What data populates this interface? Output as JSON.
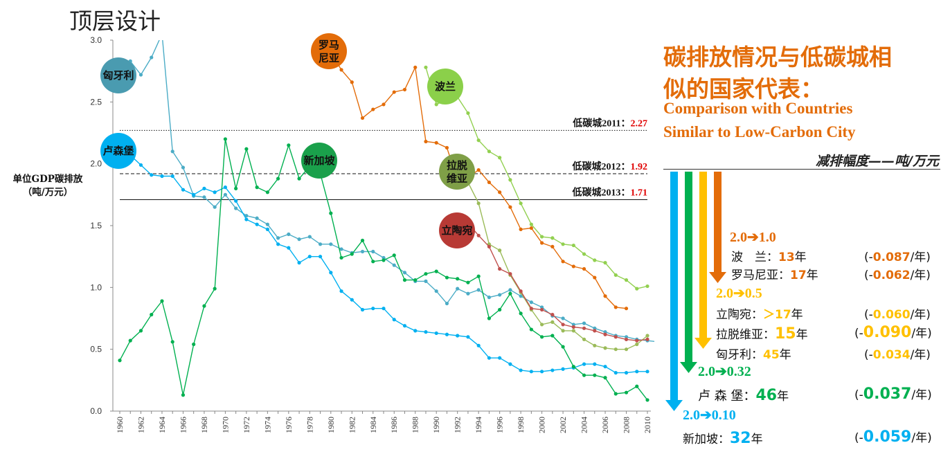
{
  "page_title": "顶层设计",
  "right_panel": {
    "title_line1": "碳排放情况与低碳城相",
    "title_line2": "似的国家代表：",
    "english_line1": "Comparison with Countries",
    "english_line2": "Similar to Low-Carbon City",
    "subtitle": "减排幅度——吨/万元",
    "arrow_colors": [
      "#00b0f0",
      "#00b050",
      "#ffc000",
      "#e36c09"
    ],
    "groups": [
      {
        "range": "2.0➔1.0",
        "color": "#e36c09",
        "rows": [
          {
            "label": "波　兰：",
            "years": "13",
            "unit": "年",
            "rate": "0.087"
          },
          {
            "label": "罗马尼亚：",
            "years": "17",
            "unit": "年",
            "rate": "0.062"
          }
        ]
      },
      {
        "range": "2.0➔0.5",
        "color": "#ffc000",
        "rows": [
          {
            "label": "立陶宛：",
            "years": "＞17",
            "unit": "年",
            "rate": "0.060"
          },
          {
            "label": "拉脱维亚：",
            "years": "15",
            "unit": "年",
            "rate": "0.090"
          },
          {
            "label": "匈牙利：",
            "years": "45",
            "unit": "年",
            "rate": "0.034"
          }
        ]
      },
      {
        "range": "2.0➔0.32",
        "color": "#00b050",
        "rows": [
          {
            "label": "卢 森 堡：",
            "years": "46",
            "unit": "年",
            "rate": "0.037"
          }
        ]
      },
      {
        "range": "2.0➔0.10",
        "color": "#00b0f0",
        "rows": [
          {
            "label": "新加坡：",
            "years": "32",
            "unit": "年",
            "rate": "0.059"
          }
        ]
      }
    ],
    "rate_prefix": "(-",
    "rate_suffix": "/年)"
  },
  "chart_data": {
    "type": "line",
    "ylabel_line1": "单位GDP碳排放",
    "ylabel_line2": "（吨/万元）",
    "ylim": [
      0,
      3.0
    ],
    "yticks": [
      "0.0",
      "0.5",
      "1.0",
      "1.5",
      "2.0",
      "2.5",
      "3.0"
    ],
    "xlim": [
      1960,
      2010
    ],
    "xticks": [
      "1960",
      "1962",
      "1964",
      "1966",
      "1968",
      "1970",
      "1972",
      "1974",
      "1976",
      "1978",
      "1980",
      "1982",
      "1984",
      "1986",
      "1988",
      "1990",
      "1992",
      "1994",
      "1996",
      "1998",
      "2000",
      "2002",
      "2004",
      "2006",
      "2008",
      "2010"
    ],
    "reference_lines": [
      {
        "label": "低碳城2011：",
        "value_label": "2.27",
        "value": 2.27,
        "style": "dotted"
      },
      {
        "label": "低碳城2012：",
        "value_label": "1.92",
        "value": 1.92,
        "style": "dashed"
      },
      {
        "label": "低碳城2013：",
        "value_label": "1.71",
        "value": 1.71,
        "style": "solid"
      }
    ],
    "series": [
      {
        "name": "匈牙利",
        "color": "#4bacc6",
        "bubble": "#4a9bb0",
        "start": 1961,
        "values": [
          2.83,
          2.72,
          2.86,
          3.05,
          2.1,
          1.97,
          1.74,
          1.73,
          1.65,
          1.75,
          1.64,
          1.58,
          1.56,
          1.51,
          1.4,
          1.43,
          1.39,
          1.41,
          1.35,
          1.35,
          1.31,
          1.28,
          1.29,
          1.29,
          1.24,
          1.18,
          1.12,
          1.05,
          1.05,
          0.97,
          0.87,
          0.99,
          0.95,
          0.98,
          0.92,
          0.94,
          0.98,
          0.93,
          0.88,
          0.84,
          0.77,
          0.75,
          0.7,
          0.71,
          0.67,
          0.64,
          0.61,
          0.6,
          0.58,
          0.57,
          0.56
        ]
      },
      {
        "name": "卢森堡",
        "color": "#00b0f0",
        "bubble": "#00b0f0",
        "start": 1960,
        "values": [
          2.12,
          2.07,
          1.99,
          1.91,
          1.9,
          1.9,
          1.79,
          1.75,
          1.8,
          1.77,
          1.81,
          1.7,
          1.55,
          1.51,
          1.47,
          1.35,
          1.32,
          1.2,
          1.25,
          1.25,
          1.12,
          0.97,
          0.9,
          0.82,
          0.83,
          0.83,
          0.74,
          0.69,
          0.65,
          0.64,
          0.63,
          0.62,
          0.61,
          0.6,
          0.53,
          0.43,
          0.43,
          0.38,
          0.33,
          0.32,
          0.32,
          0.33,
          0.34,
          0.35,
          0.38,
          0.38,
          0.36,
          0.31,
          0.31,
          0.32,
          0.32
        ]
      },
      {
        "name": "新加坡",
        "color": "#00b050",
        "bubble": "#1aa04b",
        "start": 1960,
        "values": [
          0.41,
          0.57,
          0.65,
          0.78,
          0.89,
          0.56,
          0.13,
          0.54,
          0.85,
          0.99,
          2.2,
          1.8,
          2.12,
          1.81,
          1.77,
          1.88,
          2.15,
          1.88,
          1.98,
          1.92,
          1.6,
          1.24,
          1.27,
          1.38,
          1.21,
          1.22,
          1.26,
          1.06,
          1.06,
          1.11,
          1.13,
          1.08,
          1.07,
          1.04,
          1.09,
          0.75,
          0.82,
          0.95,
          0.79,
          0.66,
          0.6,
          0.61,
          0.52,
          0.36,
          0.29,
          0.29,
          0.27,
          0.14,
          0.15,
          0.2,
          0.09
        ]
      },
      {
        "name": "罗马尼亚",
        "color": "#e36c09",
        "bubble": "#e36c09",
        "start": 1980,
        "values": [
          2.9,
          2.76,
          2.66,
          2.37,
          2.44,
          2.48,
          2.58,
          2.6,
          2.78,
          2.18,
          2.17,
          2.13,
          1.87,
          1.89,
          1.95,
          1.85,
          1.77,
          1.65,
          1.47,
          1.48,
          1.36,
          1.33,
          1.21,
          1.17,
          1.15,
          1.08,
          0.93,
          0.84,
          0.83
        ]
      },
      {
        "name": "波兰",
        "color": "#92d050",
        "bubble": "#8bd04a",
        "start": 1989,
        "values": [
          2.78,
          2.48,
          2.52,
          2.54,
          2.41,
          2.19,
          2.1,
          2.05,
          1.87,
          1.68,
          1.51,
          1.41,
          1.4,
          1.35,
          1.34,
          1.27,
          1.22,
          1.2,
          1.1,
          1.06,
          0.99,
          1.01
        ]
      },
      {
        "name": "拉脱维亚",
        "color": "#9bbb59",
        "bubble": "#7f9f47",
        "start": 1992,
        "values": [
          1.92,
          1.85,
          1.68,
          1.35,
          1.3,
          1.1,
          0.96,
          0.82,
          0.7,
          0.72,
          0.65,
          0.65,
          0.58,
          0.53,
          0.51,
          0.5,
          0.5,
          0.54,
          0.61
        ]
      },
      {
        "name": "立陶宛",
        "color": "#c0504d",
        "bubble": "#b83a35",
        "start": 1993,
        "values": [
          1.52,
          1.42,
          1.33,
          1.15,
          1.11,
          0.97,
          0.83,
          0.82,
          0.78,
          0.7,
          0.68,
          0.67,
          0.65,
          0.62,
          0.6,
          0.58,
          0.57,
          0.58
        ]
      }
    ]
  }
}
